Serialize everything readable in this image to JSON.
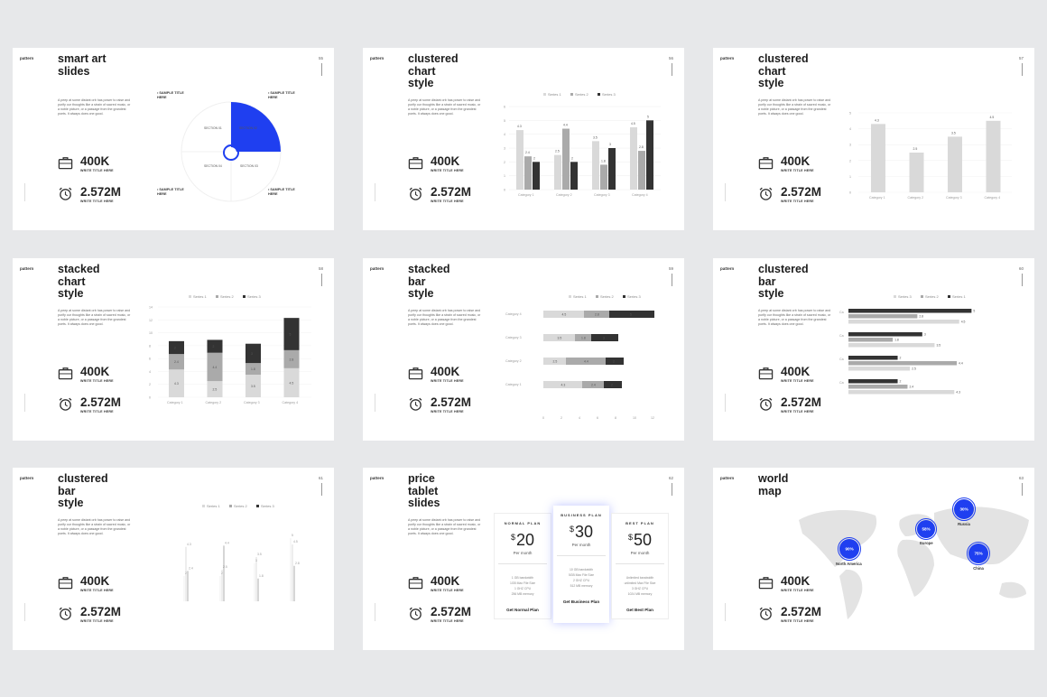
{
  "common": {
    "brand": "pattern",
    "desc": "A peep at some distant orb has power to raise and purify our thoughts like a strain of sacred music, or a noble picture, or a passage from the grandest poets. It always does one good.",
    "stat1_value": "400K",
    "stat1_caption": "WRITE TITLE HERE",
    "stat2_value": "2.572M",
    "stat2_caption": "WRITE TITLE HERE"
  },
  "icons": {
    "stat1": "briefcase-icon",
    "stat2": "alarm-clock-icon"
  },
  "colors": {
    "accent": "#1f3ff0",
    "dark": "#333333",
    "mid": "#aaaaaa",
    "light": "#d9d9d9"
  },
  "slides": [
    {
      "title": "smart art\nslides",
      "page": "55",
      "labels": [
        "SAMPLE TITLE HERE",
        "SAMPLE TITLE HERE",
        "SAMPLE TITLE HERE",
        "SAMPLE TITLE HERE"
      ],
      "sections": [
        "SECTION 01",
        "SECTION 02",
        "SECTION 04",
        "SECTION 03"
      ]
    },
    {
      "title": "clustered\nchart\nstyle",
      "page": "56"
    },
    {
      "title": "clustered\nchart\nstyle",
      "page": "57"
    },
    {
      "title": "stacked\nchart\nstyle",
      "page": "58"
    },
    {
      "title": "stacked\nbar\nstyle",
      "page": "59"
    },
    {
      "title": "clustered\nbar\nstyle",
      "page": "60"
    },
    {
      "title": "clustered\nbar\nstyle",
      "page": "61"
    },
    {
      "title": "price\ntablet\nslides",
      "page": "62",
      "plans": [
        {
          "name": "NORMAL PLAN",
          "currency": "$",
          "price": "20",
          "period": "Per month",
          "features": "1 GB bandwidth\n1GB Max File Size\n1 GHZ CPU\n256 MB memory",
          "cta": "Get Normal Plan"
        },
        {
          "name": "BUSINESS PLAN",
          "currency": "$",
          "price": "30",
          "period": "Per month",
          "features": "10 GB bandwidth\n5GB Max File Size\n2 GHZ CPU\n512 MB memory",
          "cta": "Get Business Plan"
        },
        {
          "name": "BEST PLAN",
          "currency": "$",
          "price": "50",
          "period": "Per month",
          "features": "Unlimited bandwidth\nunlimited Max File Size\n3 GHZ CPU\n1024 MB memory",
          "cta": "Get Best Plan"
        }
      ]
    },
    {
      "title": "world\nmap",
      "page": "63",
      "markers": [
        {
          "pct": "90%",
          "label": "North America"
        },
        {
          "pct": "58%",
          "label": "Europe"
        },
        {
          "pct": "30%",
          "label": "Russia"
        },
        {
          "pct": "75%",
          "label": "China"
        }
      ]
    }
  ],
  "chart_data": [
    {
      "type": "bar",
      "categories": [
        "Category 1",
        "Category 2",
        "Category 3",
        "Category 4"
      ],
      "series": [
        {
          "name": "Series 1",
          "values": [
            4.3,
            2.5,
            3.5,
            4.5
          ]
        },
        {
          "name": "Series 2",
          "values": [
            2.4,
            4.4,
            1.8,
            2.8
          ]
        },
        {
          "name": "Series 3",
          "values": [
            2,
            2,
            3,
            5
          ]
        }
      ],
      "ylim": [
        0,
        6
      ],
      "legend": "top-center"
    },
    {
      "type": "bar",
      "categories": [
        "Category 1",
        "Category 2",
        "Category 3",
        "Category 4"
      ],
      "values": [
        4.3,
        2.5,
        3.5,
        4.5
      ],
      "ylim": [
        0,
        5
      ]
    },
    {
      "type": "bar",
      "stacked": true,
      "categories": [
        "Category 1",
        "Category 2",
        "Category 3",
        "Category 4"
      ],
      "series": [
        {
          "name": "Series 1",
          "values": [
            4.3,
            2.5,
            3.5,
            4.5
          ]
        },
        {
          "name": "Series 2",
          "values": [
            2.4,
            4.4,
            1.8,
            2.8
          ]
        },
        {
          "name": "Series 3",
          "values": [
            2,
            2,
            3,
            5
          ]
        }
      ],
      "ylim": [
        0,
        14
      ],
      "legend": "top-center"
    },
    {
      "type": "bar",
      "stacked": true,
      "orientation": "horizontal",
      "categories": [
        "Category 4",
        "Category 3",
        "Category 2",
        "Category 1"
      ],
      "series": [
        {
          "name": "Series 1",
          "values": [
            4.5,
            3.5,
            2.5,
            4.3
          ]
        },
        {
          "name": "Series 2",
          "values": [
            2.8,
            1.8,
            4.4,
            2.4
          ]
        },
        {
          "name": "Series 3",
          "values": [
            5,
            3,
            2,
            2
          ]
        }
      ],
      "xlim": [
        0,
        14
      ],
      "legend": "top-center"
    },
    {
      "type": "bar",
      "orientation": "horizontal",
      "series": [
        {
          "name": "Series 3",
          "values": [
            5,
            3,
            2,
            2
          ]
        },
        {
          "name": "Series 2",
          "values": [
            2.8,
            1.8,
            4.4,
            2.4
          ]
        },
        {
          "name": "Series 1",
          "values": [
            4.5,
            3.5,
            2.5,
            4.3
          ]
        }
      ],
      "legend": "top-center"
    },
    {
      "type": "line",
      "series": [
        {
          "name": "Series 1",
          "values": [
            2,
            2,
            3,
            5
          ]
        },
        {
          "name": "Series 2",
          "values": [
            4.3,
            2.5,
            3.5,
            4.5
          ]
        },
        {
          "name": "Series 3",
          "values": [
            2.4,
            4.4,
            1.8,
            2.8
          ]
        }
      ],
      "legend": "top-center"
    }
  ]
}
